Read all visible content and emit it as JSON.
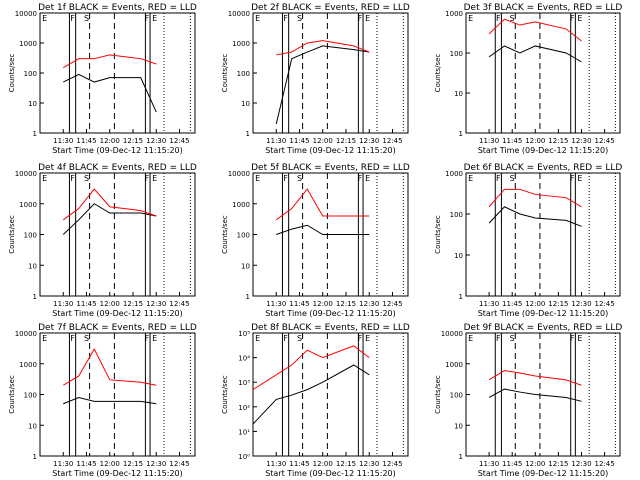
{
  "figure": {
    "ticks_x": [
      "11:30",
      "11:45",
      "12:00",
      "12:15",
      "12:30",
      "12:45"
    ],
    "xlabel": "Start Time (09-Dec-12 11:15:20)",
    "ylabel": "Counts/sec",
    "colors": {
      "events": "#000000",
      "lld": "#ff0000",
      "axes": "#000000"
    },
    "markers": [
      "E",
      "F",
      "S"
    ]
  },
  "chart_data": [
    {
      "type": "line",
      "title": "Det 1f BLACK = Events, RED = LLD",
      "ylabel": "Counts/sec",
      "xlabel": "Start Time (09-Dec-12 11:15:20)",
      "y_scale": "log",
      "ylim": [
        1,
        10000
      ],
      "yticks": [
        "1",
        "10",
        "100",
        "1000",
        "10000"
      ],
      "x": [
        "11:30",
        "11:40",
        "11:50",
        "12:00",
        "12:20",
        "12:30"
      ],
      "series": [
        {
          "name": "Events",
          "values": [
            50,
            90,
            50,
            70,
            70,
            5
          ]
        },
        {
          "name": "LLD",
          "values": [
            150,
            300,
            300,
            400,
            300,
            200
          ]
        }
      ]
    },
    {
      "type": "line",
      "title": "Det 2f BLACK = Events, RED = LLD",
      "ylabel": "Counts/sec",
      "xlabel": "Start Time (09-Dec-12 11:15:20)",
      "y_scale": "log",
      "ylim": [
        1,
        10000
      ],
      "yticks": [
        "1",
        "10",
        "100",
        "1000",
        "10000"
      ],
      "x": [
        "11:30",
        "11:40",
        "11:50",
        "12:00",
        "12:20",
        "12:30"
      ],
      "series": [
        {
          "name": "Events",
          "values": [
            2,
            300,
            500,
            800,
            600,
            500
          ]
        },
        {
          "name": "LLD",
          "values": [
            400,
            500,
            1000,
            1200,
            800,
            500
          ]
        }
      ]
    },
    {
      "type": "line",
      "title": "Det 3f BLACK = Events, RED = LLD",
      "ylabel": "Counts/sec",
      "xlabel": "Start Time (09-Dec-12 11:15:20)",
      "y_scale": "log",
      "ylim": [
        1,
        1000
      ],
      "yticks": [
        "1",
        "10",
        "100",
        "1000"
      ],
      "x": [
        "11:30",
        "11:40",
        "11:50",
        "12:00",
        "12:20",
        "12:30"
      ],
      "series": [
        {
          "name": "Events",
          "values": [
            80,
            150,
            100,
            150,
            100,
            60
          ]
        },
        {
          "name": "LLD",
          "values": [
            300,
            700,
            500,
            600,
            400,
            200
          ]
        }
      ]
    },
    {
      "type": "line",
      "title": "Det 4f BLACK = Events, RED = LLD",
      "ylabel": "Counts/sec",
      "xlabel": "Start Time (09-Dec-12 11:15:20)",
      "y_scale": "log",
      "ylim": [
        1,
        10000
      ],
      "yticks": [
        "1",
        "10",
        "100",
        "1000",
        "10000"
      ],
      "x": [
        "11:30",
        "11:40",
        "11:50",
        "12:00",
        "12:20",
        "12:30"
      ],
      "series": [
        {
          "name": "Events",
          "values": [
            100,
            300,
            1000,
            500,
            500,
            400
          ]
        },
        {
          "name": "LLD",
          "values": [
            300,
            700,
            3000,
            800,
            600,
            400
          ]
        }
      ]
    },
    {
      "type": "line",
      "title": "Det 5f BLACK = Events, RED = LLD",
      "ylabel": "Counts/sec",
      "xlabel": "Start Time (09-Dec-12 11:15:20)",
      "y_scale": "log",
      "ylim": [
        1,
        10000
      ],
      "yticks": [
        "1",
        "10",
        "100",
        "1000",
        "10000"
      ],
      "x": [
        "11:30",
        "11:40",
        "11:50",
        "12:00",
        "12:20",
        "12:30"
      ],
      "series": [
        {
          "name": "Events",
          "values": [
            100,
            150,
            200,
            100,
            100,
            100
          ]
        },
        {
          "name": "LLD",
          "values": [
            300,
            700,
            3000,
            400,
            400,
            400
          ]
        }
      ]
    },
    {
      "type": "line",
      "title": "Det 6f BLACK = Events, RED = LLD",
      "ylabel": "Counts/sec",
      "xlabel": "Start Time (09-Dec-12 11:15:20)",
      "y_scale": "log",
      "ylim": [
        1,
        1000
      ],
      "yticks": [
        "1",
        "10",
        "100",
        "1000"
      ],
      "x": [
        "11:30",
        "11:40",
        "11:50",
        "12:00",
        "12:20",
        "12:30"
      ],
      "series": [
        {
          "name": "Events",
          "values": [
            60,
            150,
            100,
            80,
            70,
            50
          ]
        },
        {
          "name": "LLD",
          "values": [
            150,
            400,
            400,
            300,
            250,
            150
          ]
        }
      ]
    },
    {
      "type": "line",
      "title": "Det 7f BLACK = Events, RED = LLD",
      "ylabel": "Counts/sec",
      "xlabel": "Start Time (09-Dec-12 11:15:20)",
      "y_scale": "log",
      "ylim": [
        1,
        10000
      ],
      "yticks": [
        "1",
        "10",
        "100",
        "1000",
        "10000"
      ],
      "x": [
        "11:30",
        "11:40",
        "11:50",
        "12:00",
        "12:20",
        "12:30"
      ],
      "series": [
        {
          "name": "Events",
          "values": [
            50,
            80,
            60,
            60,
            60,
            50
          ]
        },
        {
          "name": "LLD",
          "values": [
            200,
            400,
            3000,
            300,
            250,
            200
          ]
        }
      ]
    },
    {
      "type": "line",
      "title": "Det 8f BLACK = Events, RED = LLD",
      "ylabel": "Counts/sec",
      "xlabel": "Start Time (09-Dec-12 11:15:20)",
      "y_scale": "log",
      "ylim": [
        1,
        100000
      ],
      "yticks": [
        "10⁰",
        "10¹",
        "10²",
        "10³",
        "10⁴",
        "10⁵"
      ],
      "x": [
        "11:15",
        "11:30",
        "11:40",
        "11:50",
        "12:00",
        "12:20",
        "12:30"
      ],
      "series": [
        {
          "name": "Events",
          "values": [
            20,
            200,
            300,
            500,
            1000,
            5000,
            2000
          ]
        },
        {
          "name": "LLD",
          "values": [
            500,
            2000,
            5000,
            20000,
            10000,
            30000,
            10000
          ]
        }
      ]
    },
    {
      "type": "line",
      "title": "Det 9f BLACK = Events, RED = LLD",
      "ylabel": "Counts/sec",
      "xlabel": "Start Time (09-Dec-12 11:15:20)",
      "y_scale": "log",
      "ylim": [
        1,
        10000
      ],
      "yticks": [
        "1",
        "10",
        "100",
        "1000",
        "10000"
      ],
      "x": [
        "11:30",
        "11:40",
        "11:50",
        "12:00",
        "12:20",
        "12:30"
      ],
      "series": [
        {
          "name": "Events",
          "values": [
            80,
            150,
            120,
            100,
            80,
            60
          ]
        },
        {
          "name": "LLD",
          "values": [
            300,
            600,
            500,
            400,
            300,
            200
          ]
        }
      ]
    }
  ]
}
